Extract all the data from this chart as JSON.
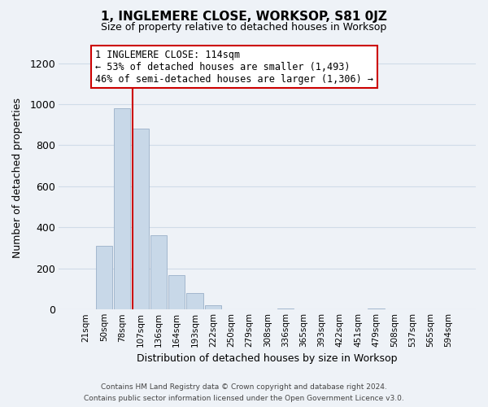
{
  "title": "1, INGLEMERE CLOSE, WORKSOP, S81 0JZ",
  "subtitle": "Size of property relative to detached houses in Worksop",
  "xlabel": "Distribution of detached houses by size in Worksop",
  "ylabel": "Number of detached properties",
  "footer_line1": "Contains HM Land Registry data © Crown copyright and database right 2024.",
  "footer_line2": "Contains public sector information licensed under the Open Government Licence v3.0.",
  "bar_labels": [
    "21sqm",
    "50sqm",
    "78sqm",
    "107sqm",
    "136sqm",
    "164sqm",
    "193sqm",
    "222sqm",
    "250sqm",
    "279sqm",
    "308sqm",
    "336sqm",
    "365sqm",
    "393sqm",
    "422sqm",
    "451sqm",
    "479sqm",
    "508sqm",
    "537sqm",
    "565sqm",
    "594sqm"
  ],
  "bar_values": [
    0,
    308,
    980,
    880,
    360,
    168,
    80,
    20,
    0,
    0,
    0,
    2,
    0,
    0,
    0,
    0,
    2,
    0,
    0,
    0,
    0
  ],
  "bar_color": "#c8d8e8",
  "bar_edge_color": "#9ab0c8",
  "property_line_index": 3,
  "property_line_color": "#cc0000",
  "annotation_title": "1 INGLEMERE CLOSE: 114sqm",
  "annotation_line1": "← 53% of detached houses are smaller (1,493)",
  "annotation_line2": "46% of semi-detached houses are larger (1,306) →",
  "annotation_box_color": "#ffffff",
  "annotation_box_edge_color": "#cc0000",
  "ylim": [
    0,
    1280
  ],
  "yticks": [
    0,
    200,
    400,
    600,
    800,
    1000,
    1200
  ],
  "grid_color": "#d0dce8",
  "background_color": "#eef2f7"
}
